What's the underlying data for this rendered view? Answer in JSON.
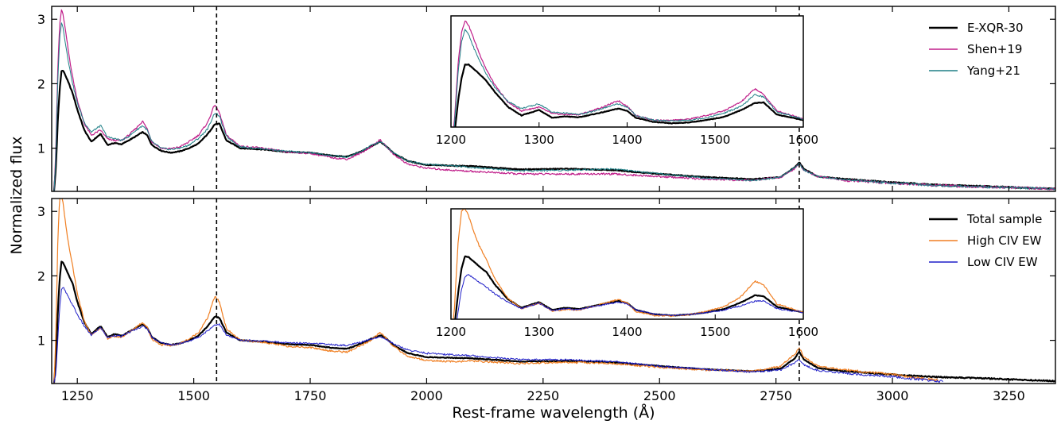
{
  "chart_data": [
    {
      "type": "line",
      "panel": "top",
      "xlabel": "Rest-frame wavelength (Å)",
      "ylabel": "Normalized flux",
      "xlim": [
        1195,
        3350
      ],
      "ylim": [
        0.33,
        3.2
      ],
      "xticks": [
        1250,
        1500,
        1750,
        2000,
        2250,
        2500,
        2750,
        3000,
        3250
      ],
      "yticks": [
        1,
        2,
        3
      ],
      "vlines": [
        1549,
        2800
      ],
      "legend_position": "top-right",
      "series": [
        {
          "name": "E-XQR-30",
          "color": "#000000",
          "width": 2.2,
          "x": [
            1200,
            1204,
            1208,
            1212,
            1216,
            1220,
            1225,
            1232,
            1240,
            1250,
            1265,
            1280,
            1300,
            1315,
            1330,
            1345,
            1360,
            1375,
            1390,
            1400,
            1410,
            1430,
            1450,
            1470,
            1490,
            1510,
            1530,
            1545,
            1555,
            1570,
            1600,
            1650,
            1700,
            1750,
            1800,
            1830,
            1860,
            1880,
            1900,
            1910,
            1930,
            1960,
            2000,
            2050,
            2100,
            2200,
            2300,
            2400,
            2500,
            2600,
            2700,
            2760,
            2790,
            2800,
            2810,
            2840,
            2900,
            3000,
            3100,
            3200,
            3300,
            3350
          ],
          "y": [
            0.33,
            0.7,
            1.4,
            1.9,
            2.2,
            2.2,
            2.12,
            2.0,
            1.85,
            1.6,
            1.28,
            1.1,
            1.22,
            1.05,
            1.08,
            1.06,
            1.12,
            1.18,
            1.25,
            1.2,
            1.05,
            0.96,
            0.93,
            0.95,
            1.0,
            1.07,
            1.22,
            1.37,
            1.38,
            1.12,
            1.0,
            0.98,
            0.94,
            0.93,
            0.88,
            0.87,
            0.95,
            1.02,
            1.1,
            1.05,
            0.92,
            0.8,
            0.74,
            0.73,
            0.72,
            0.67,
            0.68,
            0.66,
            0.6,
            0.55,
            0.52,
            0.55,
            0.7,
            0.78,
            0.68,
            0.56,
            0.52,
            0.47,
            0.43,
            0.41,
            0.38,
            0.37
          ]
        },
        {
          "name": "Shen+19",
          "color": "#c01e8a",
          "width": 1.2,
          "x": [
            1200,
            1204,
            1208,
            1212,
            1216,
            1220,
            1225,
            1232,
            1240,
            1250,
            1265,
            1280,
            1300,
            1315,
            1330,
            1345,
            1360,
            1375,
            1390,
            1400,
            1410,
            1430,
            1450,
            1470,
            1490,
            1510,
            1530,
            1545,
            1555,
            1570,
            1600,
            1650,
            1700,
            1750,
            1800,
            1830,
            1860,
            1880,
            1900,
            1910,
            1930,
            1960,
            2000,
            2050,
            2100,
            2200,
            2300,
            2400,
            2500,
            2600,
            2700,
            2760,
            2790,
            2800,
            2810,
            2840,
            2900,
            3000,
            3100,
            3200,
            3300,
            3350
          ],
          "y": [
            0.33,
            1.0,
            2.2,
            2.9,
            3.15,
            3.05,
            2.8,
            2.45,
            2.1,
            1.75,
            1.38,
            1.2,
            1.28,
            1.14,
            1.12,
            1.12,
            1.2,
            1.3,
            1.42,
            1.3,
            1.1,
            1.0,
            0.99,
            1.02,
            1.1,
            1.2,
            1.4,
            1.68,
            1.55,
            1.2,
            1.03,
            1.0,
            0.94,
            0.92,
            0.85,
            0.83,
            0.93,
            1.02,
            1.13,
            1.05,
            0.9,
            0.75,
            0.69,
            0.66,
            0.64,
            0.6,
            0.6,
            0.6,
            0.56,
            0.52,
            0.5,
            0.55,
            0.68,
            0.76,
            0.66,
            0.56,
            0.5,
            0.46,
            0.42,
            0.4,
            0.38,
            0.37
          ]
        },
        {
          "name": "Yang+21",
          "color": "#1e7f86",
          "width": 1.0,
          "x": [
            1200,
            1204,
            1208,
            1212,
            1216,
            1220,
            1225,
            1232,
            1240,
            1250,
            1265,
            1280,
            1300,
            1315,
            1330,
            1345,
            1360,
            1375,
            1390,
            1400,
            1410,
            1430,
            1450,
            1470,
            1490,
            1510,
            1530,
            1545,
            1555,
            1570,
            1600,
            1650,
            1700,
            1750,
            1800,
            1830,
            1860,
            1880,
            1900,
            1910,
            1930,
            1960,
            2000,
            2050,
            2100,
            2200,
            2300,
            2400,
            2500,
            2600,
            2700,
            2760,
            2790,
            2800,
            2810,
            2840,
            2900,
            3000,
            3100,
            3200,
            3300,
            3350
          ],
          "y": [
            0.33,
            0.9,
            2.0,
            2.7,
            2.95,
            2.85,
            2.6,
            2.3,
            2.0,
            1.7,
            1.4,
            1.25,
            1.35,
            1.17,
            1.15,
            1.12,
            1.18,
            1.27,
            1.35,
            1.28,
            1.1,
            1.0,
            0.98,
            1.0,
            1.05,
            1.15,
            1.3,
            1.55,
            1.5,
            1.18,
            1.02,
            0.99,
            0.95,
            0.93,
            0.88,
            0.86,
            0.95,
            1.04,
            1.1,
            1.05,
            0.92,
            0.8,
            0.75,
            0.73,
            0.7,
            0.65,
            0.66,
            0.68,
            0.6,
            0.54,
            0.5,
            0.55,
            0.7,
            0.76,
            0.66,
            0.56,
            0.51,
            0.46,
            0.42,
            0.4,
            0.38,
            0.37
          ]
        }
      ],
      "inset": {
        "xlim": [
          1200,
          1600
        ],
        "xticks": [
          1200,
          1300,
          1400,
          1500,
          1600
        ]
      }
    },
    {
      "type": "line",
      "panel": "bottom",
      "xlabel": "Rest-frame wavelength (Å)",
      "ylabel": "Normalized flux",
      "xlim": [
        1195,
        3350
      ],
      "ylim": [
        0.33,
        3.2
      ],
      "xticks": [
        1250,
        1500,
        1750,
        2000,
        2250,
        2500,
        2750,
        3000,
        3250
      ],
      "yticks": [
        1,
        2,
        3
      ],
      "vlines": [
        1549,
        2800
      ],
      "legend_position": "top-right",
      "series": [
        {
          "name": "Total sample",
          "color": "#000000",
          "width": 2.2,
          "x": [
            1200,
            1204,
            1208,
            1212,
            1216,
            1220,
            1225,
            1232,
            1240,
            1250,
            1265,
            1280,
            1300,
            1315,
            1330,
            1345,
            1360,
            1375,
            1390,
            1400,
            1410,
            1430,
            1450,
            1470,
            1490,
            1510,
            1530,
            1545,
            1555,
            1570,
            1600,
            1650,
            1700,
            1750,
            1800,
            1830,
            1860,
            1880,
            1900,
            1910,
            1930,
            1960,
            2000,
            2050,
            2100,
            2200,
            2300,
            2400,
            2500,
            2600,
            2700,
            2760,
            2790,
            2800,
            2810,
            2840,
            2900,
            3000,
            3100,
            3200,
            3300,
            3350
          ],
          "y": [
            0.33,
            0.7,
            1.4,
            1.95,
            2.22,
            2.2,
            2.12,
            2.0,
            1.88,
            1.6,
            1.28,
            1.1,
            1.22,
            1.05,
            1.1,
            1.07,
            1.13,
            1.19,
            1.25,
            1.2,
            1.05,
            0.96,
            0.93,
            0.95,
            1.0,
            1.07,
            1.22,
            1.37,
            1.35,
            1.12,
            1.0,
            0.98,
            0.94,
            0.93,
            0.88,
            0.87,
            0.95,
            1.02,
            1.08,
            1.05,
            0.92,
            0.8,
            0.74,
            0.73,
            0.72,
            0.67,
            0.68,
            0.66,
            0.6,
            0.55,
            0.52,
            0.56,
            0.72,
            0.82,
            0.7,
            0.57,
            0.52,
            0.47,
            0.43,
            0.41,
            0.38,
            0.37
          ]
        },
        {
          "name": "High CIV EW",
          "color": "#f07f22",
          "width": 1.2,
          "x": [
            1200,
            1204,
            1208,
            1212,
            1216,
            1220,
            1225,
            1232,
            1240,
            1250,
            1265,
            1280,
            1300,
            1315,
            1330,
            1345,
            1360,
            1375,
            1390,
            1400,
            1410,
            1430,
            1450,
            1470,
            1490,
            1510,
            1530,
            1545,
            1555,
            1570,
            1600,
            1650,
            1700,
            1750,
            1800,
            1830,
            1860,
            1880,
            1900,
            1910,
            1930,
            1960,
            2000,
            2050,
            2100,
            2200,
            2300,
            2400,
            2500,
            2600,
            2700,
            2760,
            2790,
            2800,
            2810,
            2840,
            2900,
            3000,
            3050,
            3100
          ],
          "y": [
            0.33,
            1.1,
            2.5,
            3.2,
            3.25,
            3.1,
            2.8,
            2.45,
            2.15,
            1.72,
            1.3,
            1.08,
            1.2,
            1.03,
            1.06,
            1.05,
            1.12,
            1.2,
            1.28,
            1.2,
            1.02,
            0.93,
            0.92,
            0.95,
            1.02,
            1.12,
            1.35,
            1.68,
            1.6,
            1.18,
            1.0,
            0.97,
            0.91,
            0.89,
            0.83,
            0.82,
            0.92,
            1.0,
            1.12,
            1.06,
            0.9,
            0.75,
            0.69,
            0.67,
            0.68,
            0.64,
            0.66,
            0.64,
            0.58,
            0.54,
            0.52,
            0.6,
            0.78,
            0.88,
            0.74,
            0.6,
            0.54,
            0.47,
            0.42,
            0.38
          ]
        },
        {
          "name": "Low CIV EW",
          "color": "#1f1ec8",
          "width": 1.0,
          "x": [
            1200,
            1204,
            1208,
            1212,
            1216,
            1220,
            1225,
            1232,
            1240,
            1250,
            1265,
            1280,
            1300,
            1315,
            1330,
            1345,
            1360,
            1375,
            1390,
            1400,
            1410,
            1430,
            1450,
            1470,
            1490,
            1510,
            1530,
            1545,
            1555,
            1570,
            1600,
            1650,
            1700,
            1750,
            1800,
            1830,
            1860,
            1880,
            1900,
            1910,
            1930,
            1960,
            2000,
            2050,
            2100,
            2200,
            2300,
            2400,
            2500,
            2600,
            2700,
            2760,
            2790,
            2800,
            2810,
            2840,
            2900,
            3000,
            3050,
            3110
          ],
          "y": [
            0.33,
            0.5,
            1.0,
            1.5,
            1.78,
            1.82,
            1.75,
            1.65,
            1.55,
            1.4,
            1.22,
            1.08,
            1.2,
            1.04,
            1.08,
            1.06,
            1.12,
            1.17,
            1.22,
            1.18,
            1.05,
            0.96,
            0.93,
            0.95,
            0.99,
            1.05,
            1.15,
            1.24,
            1.25,
            1.08,
            1.0,
            0.99,
            0.96,
            0.96,
            0.93,
            0.92,
            0.97,
            1.02,
            1.05,
            1.03,
            0.94,
            0.85,
            0.8,
            0.78,
            0.76,
            0.7,
            0.7,
            0.67,
            0.6,
            0.55,
            0.51,
            0.54,
            0.65,
            0.7,
            0.62,
            0.53,
            0.49,
            0.44,
            0.4,
            0.36
          ]
        }
      ],
      "inset": {
        "xlim": [
          1200,
          1600
        ],
        "xticks": [
          1200,
          1300,
          1400,
          1500,
          1600
        ]
      }
    }
  ]
}
